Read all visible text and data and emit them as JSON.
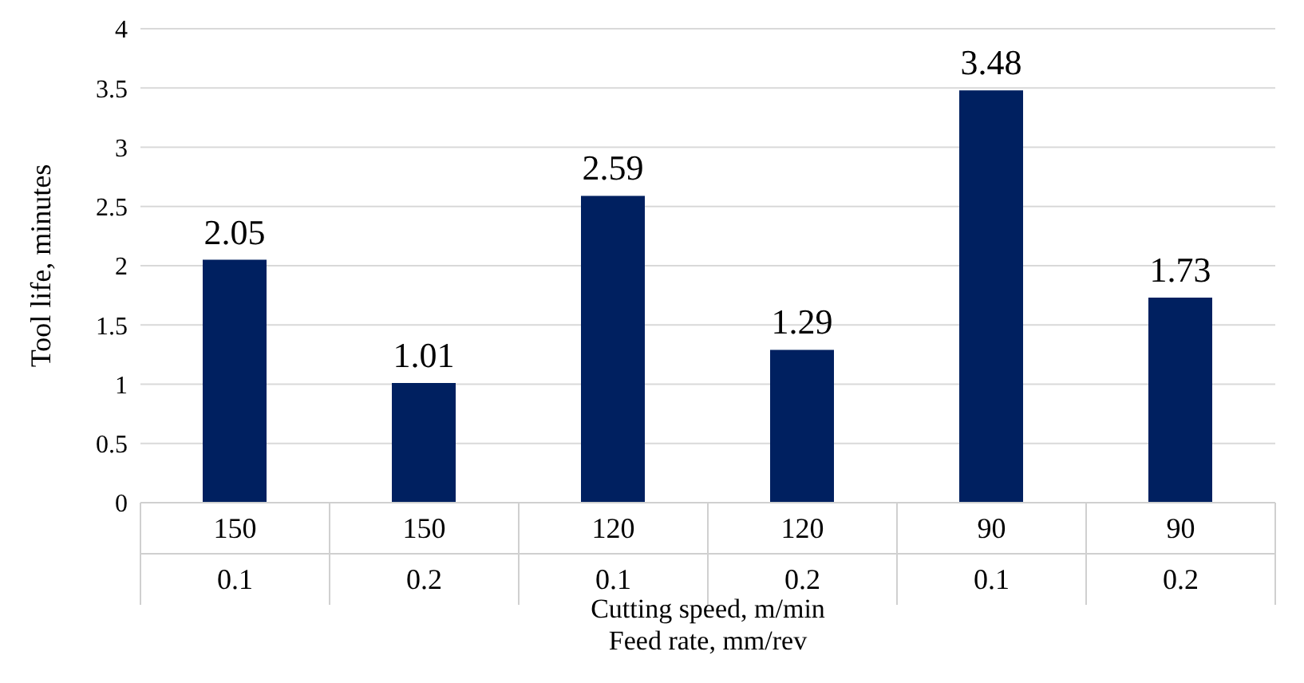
{
  "chart_data": {
    "type": "bar",
    "xlabel": "Cutting speed, m/min\nFeed rate, mm/rev",
    "ylabel": "Tool life, minutes",
    "categories": [
      "150\n0.1",
      "150\n0.2",
      "120\n0.1",
      "120\n0.2",
      "90\n0.1",
      "90\n0.2"
    ],
    "values": [
      2.05,
      1.01,
      2.59,
      1.29,
      3.48,
      1.73
    ],
    "color": "#002060",
    "ylim": [
      0,
      4
    ],
    "yticks": [
      0,
      0.5,
      1,
      1.5,
      2,
      2.5,
      3,
      3.5,
      4
    ],
    "grid": "y",
    "data_labels": true
  }
}
